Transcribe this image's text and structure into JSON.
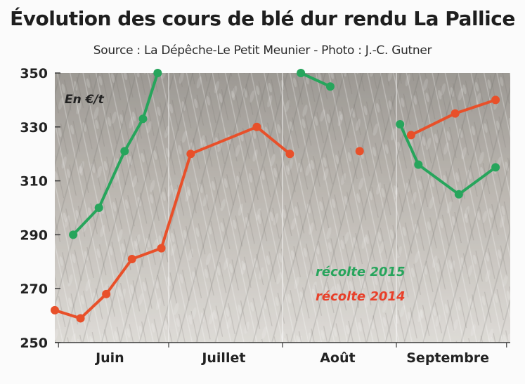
{
  "title": "Évolution des cours de blé dur rendu La Pallice",
  "subtitle": "Source : La Dépêche-Le Petit Meunier - Photo : J.-C. Gutner",
  "chart_data": {
    "type": "line",
    "ylabel": "En €/t",
    "ylim": [
      250,
      350
    ],
    "y_ticks": [
      250,
      270,
      290,
      310,
      330,
      350
    ],
    "months": [
      "Juin",
      "Juillet",
      "Août",
      "Septembre"
    ],
    "grid": "vertical month separators",
    "background": "wheat field photo",
    "legend_placement": "bottom-right",
    "series": [
      {
        "name": "récolte 2015",
        "color": "#27a55c",
        "segments": [
          [
            [
              "2015-06-05",
              290
            ],
            [
              "2015-06-12",
              300
            ],
            [
              "2015-06-19",
              321
            ],
            [
              "2015-06-24",
              333
            ],
            [
              "2015-06-28",
              350
            ]
          ],
          [
            [
              "2015-08-06",
              350
            ],
            [
              "2015-08-14",
              345
            ]
          ],
          [
            [
              "2015-09-02",
              331
            ],
            [
              "2015-09-07",
              316
            ],
            [
              "2015-09-18",
              305
            ],
            [
              "2015-09-28",
              315
            ]
          ]
        ]
      },
      {
        "name": "récolte 2014",
        "color": "#e8502a",
        "segments": [
          [
            [
              "2014-05-31",
              262
            ],
            [
              "2014-06-07",
              259
            ],
            [
              "2014-06-14",
              268
            ],
            [
              "2014-06-21",
              281
            ],
            [
              "2014-06-29",
              285
            ],
            [
              "2014-07-07",
              320
            ],
            [
              "2014-07-25",
              330
            ],
            [
              "2014-08-03",
              320
            ]
          ],
          [
            [
              "2014-08-22",
              321
            ]
          ],
          [
            [
              "2014-09-05",
              327
            ],
            [
              "2014-09-17",
              335
            ],
            [
              "2014-09-28",
              340
            ]
          ]
        ]
      }
    ]
  }
}
